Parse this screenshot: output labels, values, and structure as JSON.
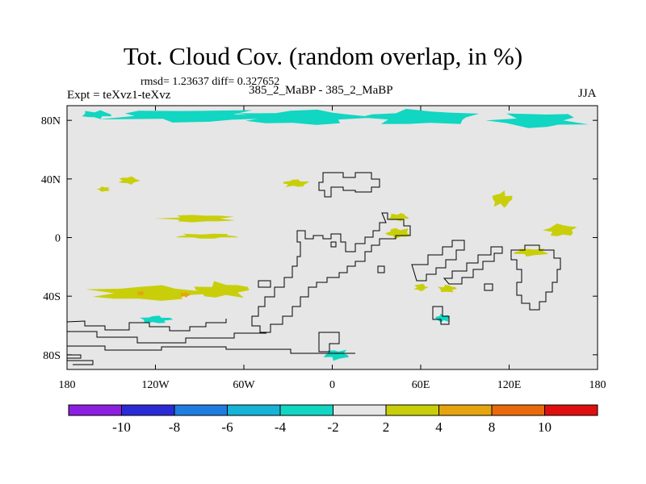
{
  "chart_data": {
    "type": "heatmap",
    "title": "Tot. Cloud Cov. (random overlap, in %)",
    "stats_text": "rmsd= 1.23637 diff= 0.327652",
    "experiment_text": "Expt = teXvz1-teXvz",
    "subtitle": "385_2_MaBP - 385_2_MaBP",
    "season": "JJA",
    "x_axis": {
      "range": [
        -180,
        180
      ],
      "ticks": [
        {
          "value": -180,
          "label": "180"
        },
        {
          "value": -120,
          "label": "120W"
        },
        {
          "value": -60,
          "label": "60W"
        },
        {
          "value": 0,
          "label": "0"
        },
        {
          "value": 60,
          "label": "60E"
        },
        {
          "value": 120,
          "label": "120E"
        },
        {
          "value": 180,
          "label": "180"
        }
      ]
    },
    "y_axis": {
      "range": [
        -90,
        90
      ],
      "ticks": [
        {
          "value": 80,
          "label": "80N"
        },
        {
          "value": 40,
          "label": "40N"
        },
        {
          "value": 0,
          "label": "0"
        },
        {
          "value": -40,
          "label": "40S"
        },
        {
          "value": -80,
          "label": "80S"
        }
      ]
    },
    "colorbar": {
      "colors": [
        "#8c1fe0",
        "#2b2bd6",
        "#1e7de0",
        "#16b3d6",
        "#10d6c2",
        "#e6e6e6",
        "#c8cf0a",
        "#e6a50f",
        "#e86a0c",
        "#e00f0f"
      ],
      "boundary_labels": [
        "-10",
        "-8",
        "-6",
        "-4",
        "-2",
        "2",
        "4",
        "8",
        "10"
      ]
    },
    "regions": [
      {
        "level": "-4",
        "color": "#10d6c2",
        "lon": -95,
        "lat": 83,
        "rlon": 65,
        "rlat": 5
      },
      {
        "level": "-4",
        "color": "#10d6c2",
        "lon": -20,
        "lat": 82,
        "rlon": 48,
        "rlat": 6
      },
      {
        "level": "-4",
        "color": "#10d6c2",
        "lon": 60,
        "lat": 82,
        "rlon": 45,
        "rlat": 6
      },
      {
        "level": "-4",
        "color": "#10d6c2",
        "lon": 140,
        "lat": 80,
        "rlon": 35,
        "rlat": 6
      },
      {
        "level": "-4",
        "color": "#10d6c2",
        "lon": -160,
        "lat": 84,
        "rlon": 12,
        "rlat": 3
      },
      {
        "level": "-4",
        "color": "#10d6c2",
        "lon": -120,
        "lat": -56,
        "rlon": 12,
        "rlat": 3
      },
      {
        "level": "-4",
        "color": "#10d6c2",
        "lon": 75,
        "lat": -55,
        "rlon": 6,
        "rlat": 3
      },
      {
        "level": "-4",
        "color": "#10d6c2",
        "lon": 3,
        "lat": -80,
        "rlon": 10,
        "rlat": 4
      },
      {
        "level": "2",
        "color": "#c8cf0a",
        "lon": -138,
        "lat": 39,
        "rlon": 8,
        "rlat": 3
      },
      {
        "level": "2",
        "color": "#c8cf0a",
        "lon": -25,
        "lat": 37,
        "rlon": 10,
        "rlat": 3
      },
      {
        "level": "2",
        "color": "#c8cf0a",
        "lon": -90,
        "lat": 13,
        "rlon": 28,
        "rlat": 3
      },
      {
        "level": "2",
        "color": "#c8cf0a",
        "lon": -85,
        "lat": 1,
        "rlon": 25,
        "rlat": 2
      },
      {
        "level": "2",
        "color": "#c8cf0a",
        "lon": -125,
        "lat": -38,
        "rlon": 45,
        "rlat": 6
      },
      {
        "level": "2",
        "color": "#c8cf0a",
        "lon": -75,
        "lat": -36,
        "rlon": 22,
        "rlat": 6
      },
      {
        "level": "2",
        "color": "#c8cf0a",
        "lon": 45,
        "lat": 3,
        "rlon": 10,
        "rlat": 4
      },
      {
        "level": "2",
        "color": "#c8cf0a",
        "lon": 45,
        "lat": 14,
        "rlon": 8,
        "rlat": 3
      },
      {
        "level": "2",
        "color": "#c8cf0a",
        "lon": 115,
        "lat": 26,
        "rlon": 8,
        "rlat": 6
      },
      {
        "level": "2",
        "color": "#c8cf0a",
        "lon": 155,
        "lat": 5,
        "rlon": 12,
        "rlat": 5
      },
      {
        "level": "2",
        "color": "#c8cf0a",
        "lon": 135,
        "lat": -10,
        "rlon": 14,
        "rlat": 3
      },
      {
        "level": "2",
        "color": "#c8cf0a",
        "lon": 60,
        "lat": -34,
        "rlon": 5,
        "rlat": 3
      },
      {
        "level": "2",
        "color": "#c8cf0a",
        "lon": 78,
        "lat": -35,
        "rlon": 7,
        "rlat": 3
      },
      {
        "level": "2",
        "color": "#c8cf0a",
        "lon": -155,
        "lat": 33,
        "rlon": 5,
        "rlat": 2
      },
      {
        "level": "4",
        "color": "#e6a50f",
        "lon": -130,
        "lat": -38,
        "rlon": 3,
        "rlat": 2
      },
      {
        "level": "4",
        "color": "#e6a50f",
        "lon": -100,
        "lat": -39,
        "rlon": 4,
        "rlat": 2
      }
    ]
  }
}
